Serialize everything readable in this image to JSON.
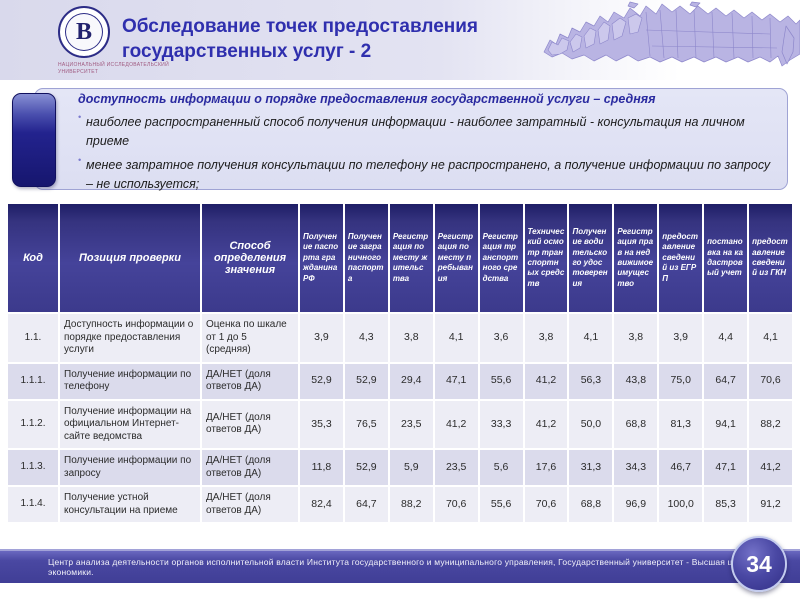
{
  "header": {
    "title_line1": "Обследование точек предоставления",
    "title_line2": "государственных услуг - 2"
  },
  "logo": {
    "glyph": "В",
    "caption": "НАЦИОНАЛЬНЫЙ ИССЛЕДОВАТЕЛЬСКИЙ УНИВЕРСИТЕТ"
  },
  "key_findings": {
    "bullet_glyph": "•",
    "lead": "доступность информации о порядке предоставления государственной услуги – средняя",
    "items": [
      "наиболее распространенный способ получения информации - наиболее затратный - консультация на личном приеме",
      "менее затратное получения консультации по телефону не распространено, а получение информации по запросу – не используется;"
    ]
  },
  "table": {
    "main_columns": [
      "Код",
      "Позиция проверки",
      "Способ определения значения"
    ],
    "service_columns": [
      "Получение паспорта гражданина РФ",
      "Получение заграничного паспорта",
      "Регистрация по месту жительства",
      "Регистрация по месту пребывания",
      "Регистрация транспортного средства",
      "Технический осмотр транспортных средств",
      "Получение водительского удостоверения",
      "Регистрация прав на недвижимое имущество",
      "предоставление сведений из ЕГРП",
      "постановка на кадастровый учет",
      "предоставление сведений из ГКН"
    ],
    "rows": [
      {
        "code": "1.1.",
        "position": "Доступность информации о порядке предоставления услуги",
        "method": "Оценка по шкале от 1 до 5 (средняя)",
        "values": [
          "3,9",
          "4,3",
          "3,8",
          "4,1",
          "3,6",
          "3,8",
          "4,1",
          "3,8",
          "3,9",
          "4,4",
          "4,1"
        ]
      },
      {
        "code": "1.1.1.",
        "position": "Получение информации по телефону",
        "method": "ДА/НЕТ (доля ответов ДА)",
        "values": [
          "52,9",
          "52,9",
          "29,4",
          "47,1",
          "55,6",
          "41,2",
          "56,3",
          "43,8",
          "75,0",
          "64,7",
          "70,6"
        ]
      },
      {
        "code": "1.1.2.",
        "position": "Получение информации на официальном Интернет-сайте ведомства",
        "method": "ДА/НЕТ (доля ответов ДА)",
        "values": [
          "35,3",
          "76,5",
          "23,5",
          "41,2",
          "33,3",
          "41,2",
          "50,0",
          "68,8",
          "81,3",
          "94,1",
          "88,2"
        ]
      },
      {
        "code": "1.1.3.",
        "position": "Получение информации по запросу",
        "method": "ДА/НЕТ (доля ответов ДА)",
        "values": [
          "11,8",
          "52,9",
          "5,9",
          "23,5",
          "5,6",
          "17,6",
          "31,3",
          "34,3",
          "46,7",
          "47,1",
          "41,2"
        ]
      },
      {
        "code": "1.1.4.",
        "position": "Получение устной консультации на приеме",
        "method": "ДА/НЕТ (доля ответов ДА)",
        "values": [
          "82,4",
          "64,7",
          "88,2",
          "70,6",
          "55,6",
          "70,6",
          "68,8",
          "96,9",
          "100,0",
          "85,3",
          "91,2"
        ]
      }
    ]
  },
  "footer": {
    "text": "Центр анализа деятельности органов исполнительной власти Института государственного  и муниципального управления, Государственный университет  - Высшая школа экономики.",
    "page_number": "34"
  },
  "colors": {
    "brand_blue": "#2f2fae",
    "table_header_blue": "#403e92",
    "footer_blue": "#4a48a2",
    "row_light": "#ededf5",
    "row_dark": "#dbdbec"
  }
}
